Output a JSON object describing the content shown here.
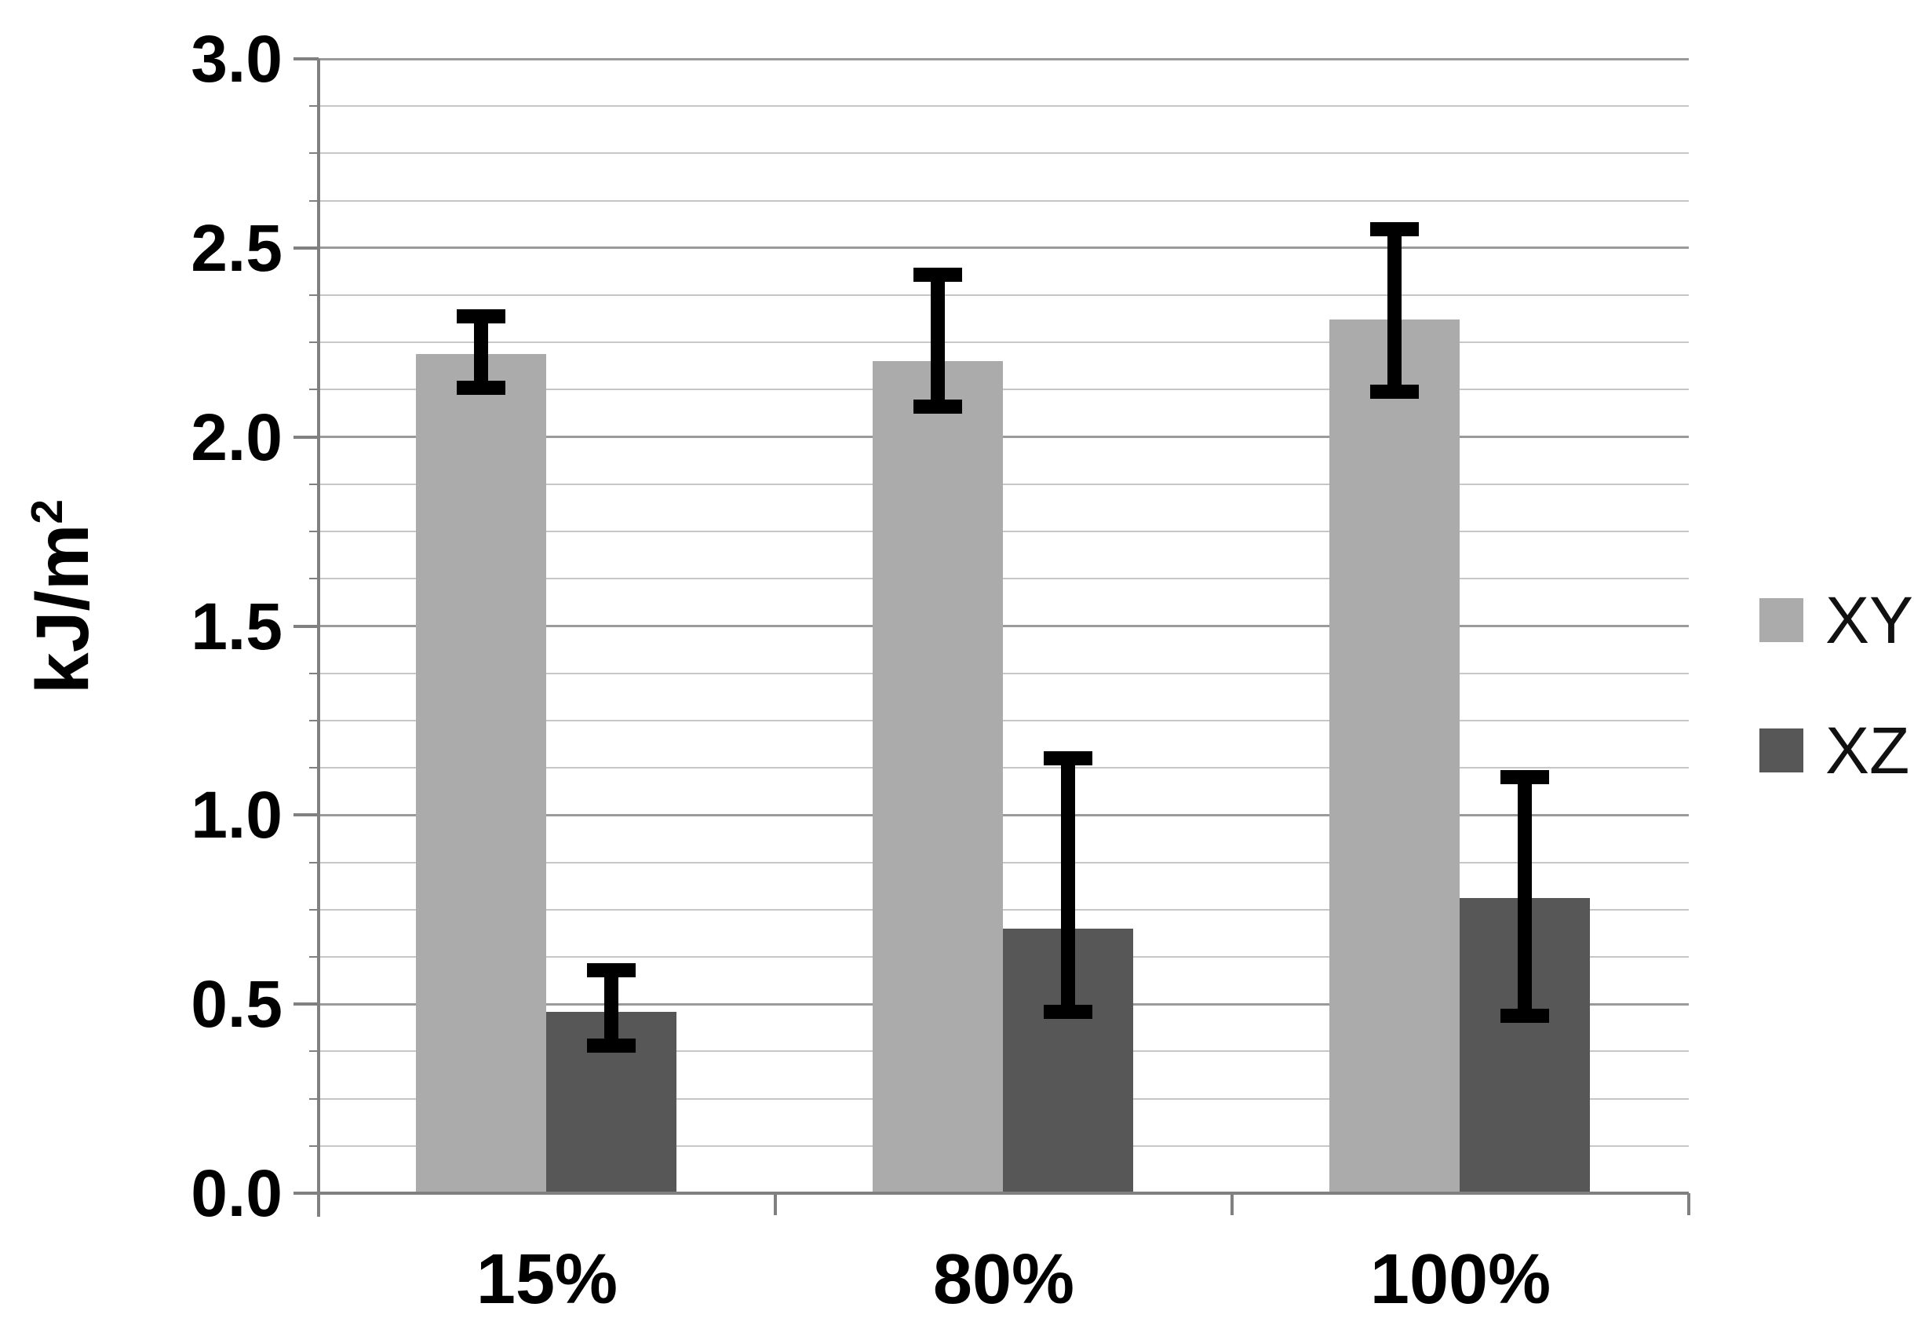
{
  "chart_data": {
    "type": "bar",
    "title": "",
    "xlabel": "",
    "ylabel_base": "kJ/m",
    "ylabel_sup": "2",
    "categories": [
      "15%",
      "80%",
      "100%"
    ],
    "series": [
      {
        "name": "XY",
        "color": "#ababab",
        "values": [
          2.22,
          2.2,
          2.31
        ],
        "error_low": [
          2.13,
          2.08,
          2.12
        ],
        "error_high": [
          2.32,
          2.43,
          2.55
        ]
      },
      {
        "name": "XZ",
        "color": "#575757",
        "values": [
          0.48,
          0.7,
          0.78
        ],
        "error_low": [
          0.39,
          0.48,
          0.47
        ],
        "error_high": [
          0.59,
          1.15,
          1.1
        ]
      }
    ],
    "ylim": [
      0.0,
      3.0
    ],
    "ytick_step": 0.5,
    "yminor_step": 0.125,
    "ytick_labels": [
      "0.0",
      "0.5",
      "1.0",
      "1.5",
      "2.0",
      "2.5",
      "3.0"
    ],
    "grid": "horizontal, major and minor lines",
    "legend_position": "right",
    "legend": [
      "XY",
      "XZ"
    ]
  },
  "colors": {
    "background": "#ffffff",
    "axis": "#808080",
    "gridline_major": "#9a9a9a",
    "gridline_minor": "#c7c7c7",
    "error_bar": "#000000",
    "text": "#000000",
    "series_xy": "#ababab",
    "series_xz": "#575757"
  }
}
